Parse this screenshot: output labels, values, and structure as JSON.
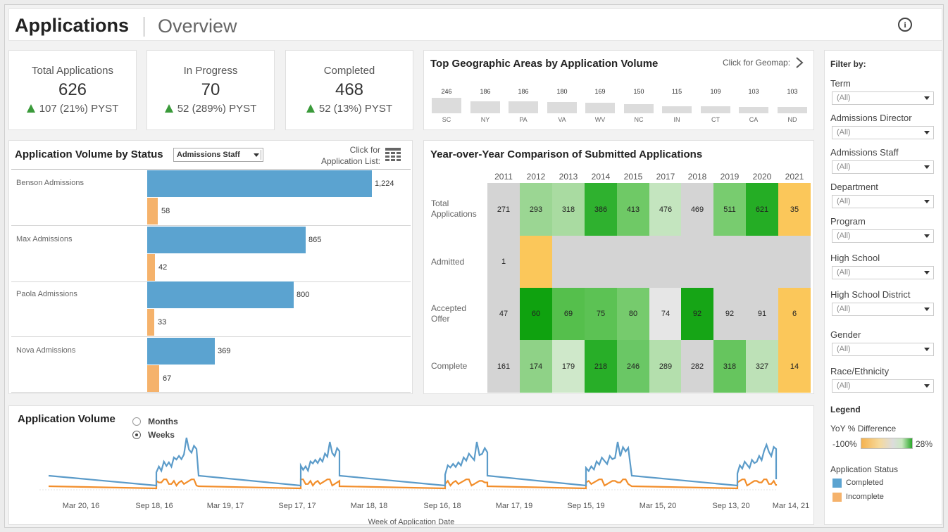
{
  "header": {
    "title": "Applications",
    "subtitle": "Overview",
    "info_icon": "info-icon"
  },
  "kpis": [
    {
      "label": "Total Applications",
      "value": "626",
      "delta": "107 (21%) PYST"
    },
    {
      "label": "In Progress",
      "value": "70",
      "delta": "52 (289%) PYST"
    },
    {
      "label": "Completed",
      "value": "468",
      "delta": "52 (13%) PYST"
    }
  ],
  "geo": {
    "title": "Top Geographic Areas by Application Volume",
    "link": "Click for Geomap:",
    "areas": [
      {
        "code": "SC",
        "value": "246"
      },
      {
        "code": "NY",
        "value": "186"
      },
      {
        "code": "PA",
        "value": "186"
      },
      {
        "code": "VA",
        "value": "180"
      },
      {
        "code": "WV",
        "value": "169"
      },
      {
        "code": "NC",
        "value": "150"
      },
      {
        "code": "IN",
        "value": "115"
      },
      {
        "code": "CT",
        "value": "109"
      },
      {
        "code": "CA",
        "value": "103"
      },
      {
        "code": "ND",
        "value": "103"
      }
    ]
  },
  "status": {
    "title": "Application Volume by Status",
    "dropdown": "Admissions Staff",
    "link_line1": "Click for",
    "link_line2": "Application List:",
    "rows": [
      {
        "name": "Benson Admissions",
        "completed": "1,224",
        "incomplete": "58"
      },
      {
        "name": "Max Admissions",
        "completed": "865",
        "incomplete": "42"
      },
      {
        "name": "Paola Admissions",
        "completed": "800",
        "incomplete": "33"
      },
      {
        "name": "Nova Admissions",
        "completed": "369",
        "incomplete": "67"
      }
    ]
  },
  "yoy": {
    "title": "Year-over-Year Comparison of Submitted Applications",
    "years": [
      "2011",
      "2012",
      "2013",
      "2014",
      "2015",
      "2017",
      "2018",
      "2019",
      "2020",
      "2021"
    ],
    "rows": [
      {
        "label_l1": "Total",
        "label_l2": "Applications",
        "values": [
          "271",
          "293",
          "318",
          "386",
          "413",
          "476",
          "469",
          "511",
          "621",
          "35"
        ]
      },
      {
        "label_l1": "Admitted",
        "label_l2": "",
        "values": [
          "1",
          "",
          "",
          "",
          "",
          "",
          "",
          "",
          "",
          ""
        ]
      },
      {
        "label_l1": "Accepted",
        "label_l2": "Offer",
        "values": [
          "47",
          "60",
          "69",
          "75",
          "80",
          "74",
          "92",
          "92",
          "91",
          "6"
        ]
      },
      {
        "label_l1": "Complete",
        "label_l2": "",
        "values": [
          "161",
          "174",
          "179",
          "218",
          "246",
          "289",
          "282",
          "318",
          "327",
          "14"
        ]
      }
    ]
  },
  "volume": {
    "title": "Application Volume",
    "radio_months": "Months",
    "radio_weeks": "Weeks",
    "selected": "Weeks",
    "xlabel": "Week of Application Date",
    "ticks": [
      "Mar 20, 16",
      "Sep 18, 16",
      "Mar 19, 17",
      "Sep 17, 17",
      "Mar 18, 18",
      "Sep 16, 18",
      "Mar 17, 19",
      "Sep 15, 19",
      "Mar 15, 20",
      "Sep 13, 20",
      "Mar 14, 21"
    ]
  },
  "filters": {
    "heading": "Filter by:",
    "items": [
      {
        "label": "Term",
        "value": "(All)"
      },
      {
        "label": "Admissions Director",
        "value": "(All)"
      },
      {
        "label": "Admissions Staff",
        "value": "(All)"
      },
      {
        "label": "Department",
        "value": "(All)"
      },
      {
        "label": "Program",
        "value": "(All)"
      },
      {
        "label": "High School",
        "value": "(All)"
      },
      {
        "label": "High School District",
        "value": "(All)"
      },
      {
        "label": "Gender",
        "value": "(All)"
      },
      {
        "label": "Race/Ethnicity",
        "value": "(All)"
      }
    ]
  },
  "legend": {
    "heading": "Legend",
    "yoy_label": "YoY % Difference",
    "yoy_min": "-100%",
    "yoy_max": "28%",
    "status_label": "Application Status",
    "completed": "Completed",
    "incomplete": "Incomplete"
  },
  "colors": {
    "completed": "#5ba3d0",
    "incomplete": "#f5b26b",
    "line_completed": "#5b9bc9",
    "line_incomplete": "#f28e2b",
    "heat_green_dark": "#1fa51f",
    "heat_gray": "#d4d4d4",
    "heat_orange": "#fbc75a"
  }
}
